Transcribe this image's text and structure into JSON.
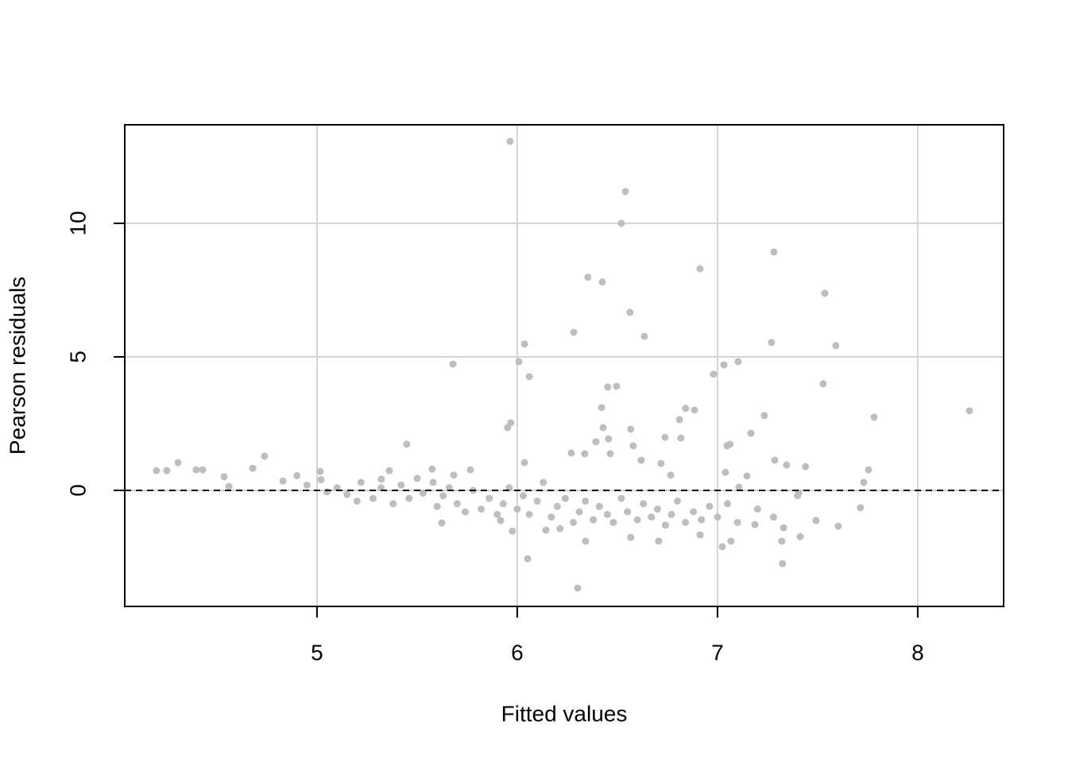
{
  "chart_data": {
    "type": "scatter",
    "xlabel": "Fitted values",
    "ylabel": "Pearson residuals",
    "xlim": [
      4.04,
      8.429
    ],
    "ylim": [
      -4.345,
      13.69
    ],
    "xticks": [
      5,
      6,
      7,
      8
    ],
    "yticks": [
      0,
      5,
      10
    ],
    "grid": true,
    "hline": 0,
    "color": "#bebebe",
    "x": [
      5.964,
      6.54,
      6.52,
      7.282,
      6.353,
      6.425,
      6.913,
      7.536,
      6.563,
      6.282,
      6.635,
      6.036,
      7.27,
      7.591,
      6.008,
      5.679,
      6.06,
      7.032,
      7.103,
      6.98,
      7.528,
      6.496,
      6.452,
      6.421,
      6.841,
      6.885,
      8.258,
      7.234,
      7.782,
      6.81,
      6.429,
      5.968,
      5.952,
      6.567,
      7.167,
      6.456,
      6.817,
      6.738,
      6.393,
      7.063,
      7.048,
      5.448,
      6.579,
      6.27,
      6.337,
      6.464,
      4.738,
      6.619,
      7.286,
      6.036,
      6.718,
      4.306,
      7.345,
      7.44,
      7.754,
      4.198,
      4.25,
      4.397,
      4.429,
      4.679,
      5.766,
      7.73,
      7.714,
      7.603,
      7.492,
      7.321,
      7.325,
      6.302,
      6.052,
      7.024,
      7.067,
      7.413,
      7.405,
      7.107,
      7.147,
      7.04,
      6.766,
      5.683,
      4.536,
      4.56,
      5.016,
      5.321,
      5.361,
      5.575,
      5.917,
      5.976,
      6.341,
      6.567,
      6.706,
      6.913,
      7.187,
      6.214,
      6.143,
      5.623,
      4.83,
      4.9,
      4.95,
      5.02,
      5.05,
      5.1,
      5.15,
      5.2,
      5.22,
      5.28,
      5.32,
      5.38,
      5.42,
      5.46,
      5.5,
      5.53,
      5.58,
      5.6,
      5.63,
      5.66,
      5.7,
      5.74,
      5.78,
      5.82,
      5.86,
      5.9,
      5.93,
      5.96,
      6.0,
      6.03,
      6.06,
      6.1,
      6.13,
      6.17,
      6.2,
      6.24,
      6.28,
      6.31,
      6.34,
      6.38,
      6.41,
      6.45,
      6.48,
      6.52,
      6.55,
      6.6,
      6.63,
      6.67,
      6.7,
      6.74,
      6.77,
      6.8,
      6.84,
      6.88,
      6.92,
      6.96,
      7.0,
      7.05,
      7.1,
      7.2,
      7.28,
      7.33,
      7.4
    ],
    "y": [
      13.07,
      11.19,
      10.0,
      8.93,
      7.98,
      7.8,
      8.3,
      7.38,
      6.67,
      5.92,
      5.77,
      5.48,
      5.54,
      5.42,
      4.82,
      4.73,
      4.26,
      4.7,
      4.82,
      4.35,
      3.99,
      3.9,
      3.87,
      3.1,
      3.07,
      3.01,
      2.98,
      2.8,
      2.74,
      2.65,
      2.35,
      2.53,
      2.35,
      2.29,
      2.14,
      1.93,
      1.96,
      1.99,
      1.82,
      1.73,
      1.67,
      1.73,
      1.67,
      1.4,
      1.37,
      1.37,
      1.28,
      1.13,
      1.13,
      1.04,
      1.01,
      1.04,
      0.95,
      0.89,
      0.77,
      0.74,
      0.74,
      0.77,
      0.77,
      0.83,
      0.77,
      0.3,
      -0.65,
      -1.34,
      -1.13,
      -1.9,
      -2.74,
      -3.66,
      -2.56,
      -2.11,
      -1.9,
      -1.73,
      -0.09,
      0.12,
      0.54,
      0.68,
      0.57,
      0.57,
      0.51,
      0.15,
      0.71,
      0.42,
      0.74,
      0.8,
      -1.13,
      -1.52,
      -1.9,
      -1.76,
      -1.9,
      -1.67,
      -1.28,
      -1.43,
      -1.49,
      -1.22,
      0.35,
      0.55,
      0.2,
      0.4,
      -0.05,
      0.1,
      -0.15,
      -0.4,
      0.3,
      -0.3,
      0.1,
      -0.5,
      0.2,
      -0.3,
      0.45,
      -0.1,
      0.3,
      -0.6,
      -0.2,
      0.1,
      -0.5,
      -0.8,
      0.0,
      -0.7,
      -0.3,
      -0.9,
      -0.5,
      0.1,
      -0.7,
      -0.2,
      -0.9,
      -0.4,
      0.3,
      -1.0,
      -0.6,
      -0.3,
      -1.2,
      -0.8,
      -0.4,
      -1.1,
      -0.6,
      -0.9,
      -1.2,
      -0.3,
      -0.8,
      -1.1,
      -0.5,
      -1.0,
      -0.7,
      -1.3,
      -0.9,
      -0.4,
      -1.2,
      -0.8,
      -1.1,
      -0.6,
      -1.0,
      -0.5,
      -1.2,
      -0.7,
      -1.0,
      -1.4,
      -0.2
    ]
  }
}
